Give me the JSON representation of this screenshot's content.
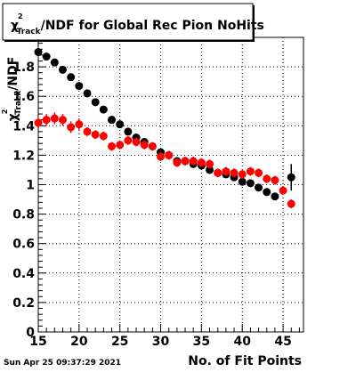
{
  "chart_data": {
    "type": "scatter",
    "title": {
      "chi": "χ",
      "sup": "2",
      "sub": "Track",
      "rest": "/NDF for Global Rec Pion NoHits"
    },
    "xlabel": "No. of Fit Points",
    "ylabel": {
      "chi": "χ",
      "sup": "2",
      "sub": "Track",
      "rest": "/NDF"
    },
    "xlim": [
      15,
      47.5
    ],
    "ylim": [
      0,
      2.0
    ],
    "x_ticks": [
      15,
      20,
      25,
      30,
      35,
      40,
      45
    ],
    "x_tick_labels": [
      "15",
      "20",
      "25",
      "30",
      "35",
      "40",
      "45"
    ],
    "y_ticks": [
      0,
      0.2,
      0.4,
      0.6,
      0.8,
      1,
      1.2,
      1.4,
      1.6,
      1.8
    ],
    "y_tick_labels": [
      "0",
      "0.2",
      "0.4",
      "0.6",
      "0.8",
      "1",
      "1.2",
      "1.4",
      "1.6",
      "1.8"
    ],
    "grid": true,
    "timestamp": "Sun Apr 25 09:37:29 2021",
    "series": [
      {
        "color": "#000000",
        "points": [
          {
            "x": 15,
            "y": 1.9,
            "err": 0.02
          },
          {
            "x": 16,
            "y": 1.87,
            "err": 0.02
          },
          {
            "x": 17,
            "y": 1.83,
            "err": 0.02
          },
          {
            "x": 18,
            "y": 1.78,
            "err": 0.02
          },
          {
            "x": 19,
            "y": 1.73,
            "err": 0.02
          },
          {
            "x": 20,
            "y": 1.67,
            "err": 0.02
          },
          {
            "x": 21,
            "y": 1.62,
            "err": 0.02
          },
          {
            "x": 22,
            "y": 1.56,
            "err": 0.02
          },
          {
            "x": 23,
            "y": 1.51,
            "err": 0.02
          },
          {
            "x": 24,
            "y": 1.44,
            "err": 0.02
          },
          {
            "x": 25,
            "y": 1.41,
            "err": 0.02
          },
          {
            "x": 26,
            "y": 1.36,
            "err": 0.02
          },
          {
            "x": 27,
            "y": 1.32,
            "err": 0.02
          },
          {
            "x": 28,
            "y": 1.29,
            "err": 0.02
          },
          {
            "x": 29,
            "y": 1.26,
            "err": 0.02
          },
          {
            "x": 30,
            "y": 1.22,
            "err": 0.02
          },
          {
            "x": 31,
            "y": 1.2,
            "err": 0.02
          },
          {
            "x": 32,
            "y": 1.16,
            "err": 0.02
          },
          {
            "x": 33,
            "y": 1.16,
            "err": 0.02
          },
          {
            "x": 34,
            "y": 1.14,
            "err": 0.02
          },
          {
            "x": 35,
            "y": 1.13,
            "err": 0.02
          },
          {
            "x": 36,
            "y": 1.1,
            "err": 0.02
          },
          {
            "x": 37,
            "y": 1.08,
            "err": 0.02
          },
          {
            "x": 38,
            "y": 1.07,
            "err": 0.02
          },
          {
            "x": 39,
            "y": 1.05,
            "err": 0.02
          },
          {
            "x": 40,
            "y": 1.02,
            "err": 0.02
          },
          {
            "x": 41,
            "y": 1.01,
            "err": 0.02
          },
          {
            "x": 42,
            "y": 0.98,
            "err": 0.02
          },
          {
            "x": 43,
            "y": 0.95,
            "err": 0.02
          },
          {
            "x": 44,
            "y": 0.92,
            "err": 0.02
          },
          {
            "x": 46,
            "y": 1.05,
            "err": 0.09
          }
        ]
      },
      {
        "color": "#ff0000",
        "points": [
          {
            "x": 15,
            "y": 1.42,
            "err": 0.04
          },
          {
            "x": 16,
            "y": 1.44,
            "err": 0.04
          },
          {
            "x": 17,
            "y": 1.45,
            "err": 0.04
          },
          {
            "x": 18,
            "y": 1.44,
            "err": 0.04
          },
          {
            "x": 19,
            "y": 1.39,
            "err": 0.04
          },
          {
            "x": 20,
            "y": 1.41,
            "err": 0.04
          },
          {
            "x": 21,
            "y": 1.36,
            "err": 0.03
          },
          {
            "x": 22,
            "y": 1.34,
            "err": 0.03
          },
          {
            "x": 23,
            "y": 1.33,
            "err": 0.03
          },
          {
            "x": 24,
            "y": 1.26,
            "err": 0.03
          },
          {
            "x": 25,
            "y": 1.27,
            "err": 0.03
          },
          {
            "x": 26,
            "y": 1.3,
            "err": 0.03
          },
          {
            "x": 27,
            "y": 1.29,
            "err": 0.03
          },
          {
            "x": 28,
            "y": 1.27,
            "err": 0.03
          },
          {
            "x": 29,
            "y": 1.26,
            "err": 0.03
          },
          {
            "x": 30,
            "y": 1.19,
            "err": 0.03
          },
          {
            "x": 31,
            "y": 1.2,
            "err": 0.03
          },
          {
            "x": 32,
            "y": 1.15,
            "err": 0.03
          },
          {
            "x": 33,
            "y": 1.16,
            "err": 0.03
          },
          {
            "x": 34,
            "y": 1.16,
            "err": 0.03
          },
          {
            "x": 35,
            "y": 1.15,
            "err": 0.03
          },
          {
            "x": 36,
            "y": 1.14,
            "err": 0.03
          },
          {
            "x": 37,
            "y": 1.08,
            "err": 0.03
          },
          {
            "x": 38,
            "y": 1.09,
            "err": 0.03
          },
          {
            "x": 39,
            "y": 1.08,
            "err": 0.03
          },
          {
            "x": 40,
            "y": 1.07,
            "err": 0.03
          },
          {
            "x": 41,
            "y": 1.09,
            "err": 0.03
          },
          {
            "x": 42,
            "y": 1.08,
            "err": 0.03
          },
          {
            "x": 43,
            "y": 1.04,
            "err": 0.03
          },
          {
            "x": 44,
            "y": 1.03,
            "err": 0.03
          },
          {
            "x": 45,
            "y": 0.96,
            "err": 0.03
          },
          {
            "x": 46,
            "y": 0.87,
            "err": 0.03
          }
        ]
      }
    ]
  }
}
